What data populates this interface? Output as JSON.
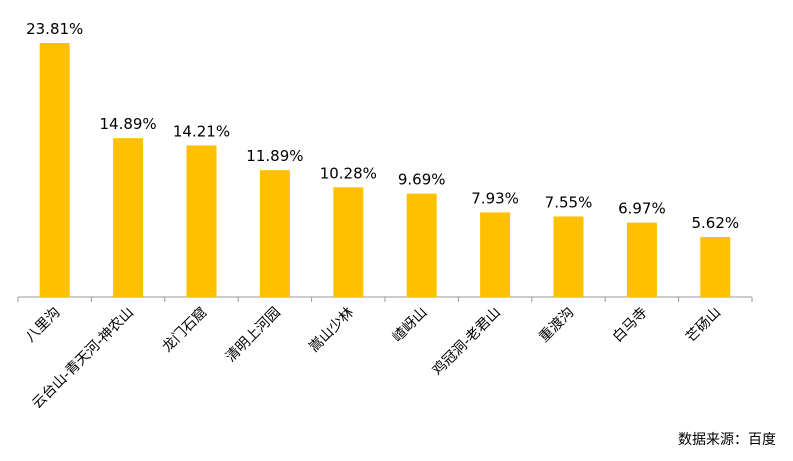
{
  "chart_data": {
    "type": "bar",
    "categories": [
      "八里沟",
      "云台山-青天河-神农山",
      "龙门石窟",
      "清明上河园",
      "嵩山少林",
      "嵖岈山",
      "鸡冠洞-老君山",
      "重渡沟",
      "白马寺",
      "芒砀山"
    ],
    "values": [
      23.81,
      14.89,
      14.21,
      11.89,
      10.28,
      9.69,
      7.93,
      7.55,
      6.97,
      5.62
    ],
    "value_labels": [
      "23.81%",
      "14.89%",
      "14.21%",
      "11.89%",
      "10.28%",
      "9.69%",
      "7.93%",
      "7.55%",
      "6.97%",
      "5.62%"
    ],
    "color": "#FFC000",
    "source": "数据来源：百度"
  }
}
